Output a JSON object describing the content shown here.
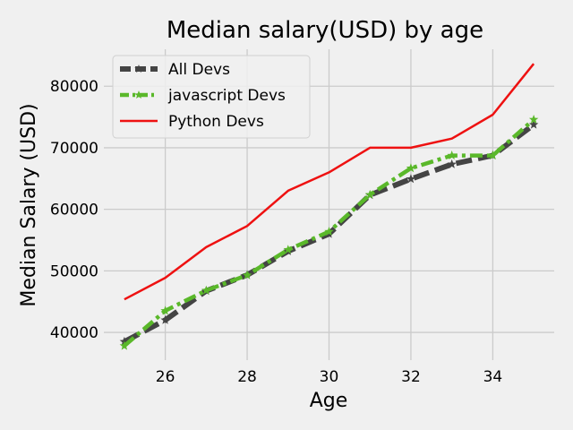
{
  "chart_data": {
    "type": "line",
    "title": "Median salary(USD) by age",
    "xlabel": "Age",
    "ylabel": "Median Salary (USD)",
    "xlim": [
      24.5,
      35.5
    ],
    "ylim": [
      35500,
      86000
    ],
    "xticks": [
      26,
      28,
      30,
      32,
      34
    ],
    "yticks": [
      40000,
      50000,
      60000,
      70000,
      80000
    ],
    "grid": true,
    "legend_position": "upper-left",
    "x": [
      25,
      26,
      27,
      28,
      29,
      30,
      31,
      32,
      33,
      34,
      35
    ],
    "series": [
      {
        "name": "All Devs",
        "color": "#444444",
        "style": "dashed",
        "marker": "star",
        "values": [
          38496,
          42000,
          46752,
          49320,
          53200,
          56000,
          62316,
          64928,
          67317,
          68748,
          73752
        ]
      },
      {
        "name": "javascript Devs",
        "color": "#5ab82a",
        "style": "dashdot",
        "marker": "star",
        "values": [
          37810,
          43515,
          46823,
          49293,
          53437,
          56373,
          62375,
          66674,
          68745,
          68746,
          74583
        ]
      },
      {
        "name": "Python Devs",
        "color": "#ee1111",
        "style": "solid",
        "marker": "none",
        "values": [
          45372,
          48876,
          53850,
          57287,
          63016,
          65998,
          70003,
          70000,
          71496,
          75370,
          83640
        ]
      }
    ]
  }
}
